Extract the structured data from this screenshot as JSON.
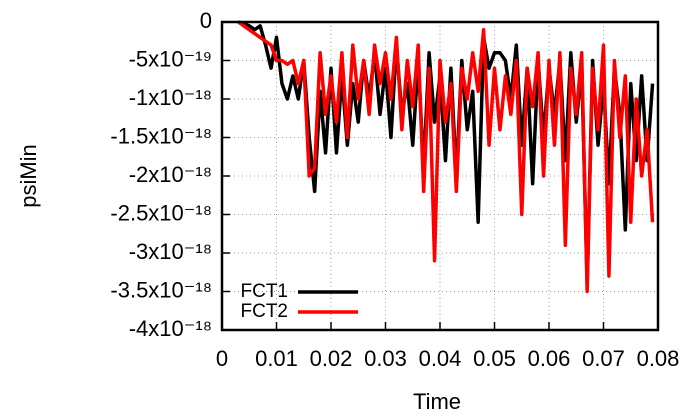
{
  "chart_data": {
    "type": "line",
    "xlabel": "Time",
    "ylabel": "psiMin",
    "x": [
      0.003,
      0.004,
      0.005,
      0.006,
      0.007,
      0.008,
      0.009,
      0.01,
      0.011,
      0.012,
      0.013,
      0.014,
      0.015,
      0.016,
      0.017,
      0.018,
      0.019,
      0.02,
      0.021,
      0.022,
      0.023,
      0.024,
      0.025,
      0.026,
      0.027,
      0.028,
      0.029,
      0.03,
      0.031,
      0.032,
      0.033,
      0.034,
      0.035,
      0.036,
      0.037,
      0.038,
      0.039,
      0.04,
      0.041,
      0.042,
      0.043,
      0.044,
      0.045,
      0.046,
      0.047,
      0.048,
      0.049,
      0.05,
      0.051,
      0.052,
      0.053,
      0.054,
      0.055,
      0.056,
      0.057,
      0.058,
      0.059,
      0.06,
      0.061,
      0.062,
      0.063,
      0.064,
      0.065,
      0.066,
      0.067,
      0.068,
      0.069,
      0.07,
      0.071,
      0.072,
      0.073,
      0.074,
      0.075,
      0.076,
      0.077,
      0.078,
      0.079
    ],
    "series": [
      {
        "name": "FCT1",
        "color": "#000000",
        "values": [
          0,
          -2e-20,
          -5e-20,
          -1e-19,
          -5e-20,
          -3e-19,
          -6e-19,
          -2e-19,
          -8e-19,
          -1e-18,
          -7e-19,
          -1e-18,
          -5e-19,
          -1.5e-18,
          -2.2e-18,
          -9e-19,
          -1.7e-18,
          -6e-19,
          -1.7e-18,
          -7e-19,
          -1.6e-18,
          -8e-19,
          -1.3e-18,
          -5e-19,
          -1e-18,
          -4e-19,
          -1.2e-18,
          -6e-19,
          -1.5e-18,
          -3e-19,
          -1.2e-18,
          -8e-19,
          -1.6e-18,
          -5e-19,
          -1.9e-18,
          -4e-19,
          -1.3e-18,
          -7e-19,
          -1.8e-18,
          -6e-19,
          -2e-18,
          -5e-19,
          -1.4e-18,
          -9e-19,
          -2.6e-18,
          -2e-19,
          -6e-19,
          -4e-19,
          -4e-19,
          -5e-19,
          -1e-18,
          -3e-19,
          -1.6e-18,
          -6e-19,
          -2.1e-18,
          -5e-19,
          -1.5e-18,
          -6e-19,
          -1.2e-18,
          -5e-19,
          -1.8e-18,
          -4e-19,
          -1.3e-18,
          -6e-19,
          -3.4e-18,
          -5e-19,
          -1.6e-18,
          -8e-19,
          -2.1e-18,
          -6e-19,
          -1.2e-18,
          -2.7e-18,
          -8e-19,
          -1.8e-18,
          -7e-19,
          -1.8e-18,
          -8e-19
        ]
      },
      {
        "name": "FCT2",
        "color": "#ff0000",
        "values": [
          0,
          -5e-20,
          -1e-19,
          -1.5e-19,
          -2e-19,
          -2.5e-19,
          -3e-19,
          -5e-19,
          -5e-19,
          -5.5e-19,
          -5e-19,
          -8e-19,
          -5e-19,
          -2e-18,
          -1.9e-18,
          -4e-19,
          -1.2e-18,
          -7e-19,
          -1.3e-18,
          -4e-19,
          -1.5e-18,
          -3e-19,
          -1e-18,
          -5e-19,
          -1.2e-18,
          -3e-19,
          -8e-19,
          -4e-19,
          -1e-18,
          -2e-19,
          -1.4e-18,
          -5e-19,
          -1.1e-18,
          -3e-19,
          -2.2e-18,
          -6e-19,
          -3.1e-18,
          -5e-19,
          -1.3e-18,
          -8e-19,
          -2.2e-18,
          -6e-19,
          -1e-18,
          -4e-19,
          -9e-19,
          -1e-19,
          -1.6e-18,
          -6e-19,
          -1.4e-18,
          -7e-19,
          -1.2e-18,
          -5e-19,
          -2.5e-18,
          -6e-19,
          -1.1e-18,
          -4e-19,
          -2e-18,
          -5e-19,
          -1.6e-18,
          -4e-19,
          -2.9e-18,
          -6e-19,
          -1.2e-18,
          -4e-19,
          -3.5e-18,
          -6e-19,
          -1.4e-18,
          -3e-19,
          -3.3e-18,
          -5e-19,
          -1.5e-18,
          -7e-19,
          -2.6e-18,
          -1e-18,
          -2e-18,
          -1.4e-18,
          -2.6e-18
        ]
      }
    ],
    "xlim": [
      0,
      0.08
    ],
    "xticks": [
      0,
      0.01,
      0.02,
      0.03,
      0.04,
      0.05,
      0.06,
      0.07,
      0.08
    ],
    "ylim": [
      -4e-18,
      0
    ],
    "yticks": [
      0,
      {
        "value": -5e-19,
        "label": "-5x10⁻¹⁹"
      },
      {
        "value": -1e-18,
        "label": "-1x10⁻¹⁸"
      },
      {
        "value": -1.5e-18,
        "label": "-1.5x10⁻¹⁸"
      },
      {
        "value": -2e-18,
        "label": "-2x10⁻¹⁸"
      },
      {
        "value": -2.5e-18,
        "label": "-2.5x10⁻¹⁸"
      },
      {
        "value": -3e-18,
        "label": "-3x10⁻¹⁸"
      },
      {
        "value": -3.5e-18,
        "label": "-3.5x10⁻¹⁸"
      },
      {
        "value": -4e-18,
        "label": "-4x10⁻¹⁸"
      }
    ],
    "grid": true,
    "legend": "lower left"
  }
}
